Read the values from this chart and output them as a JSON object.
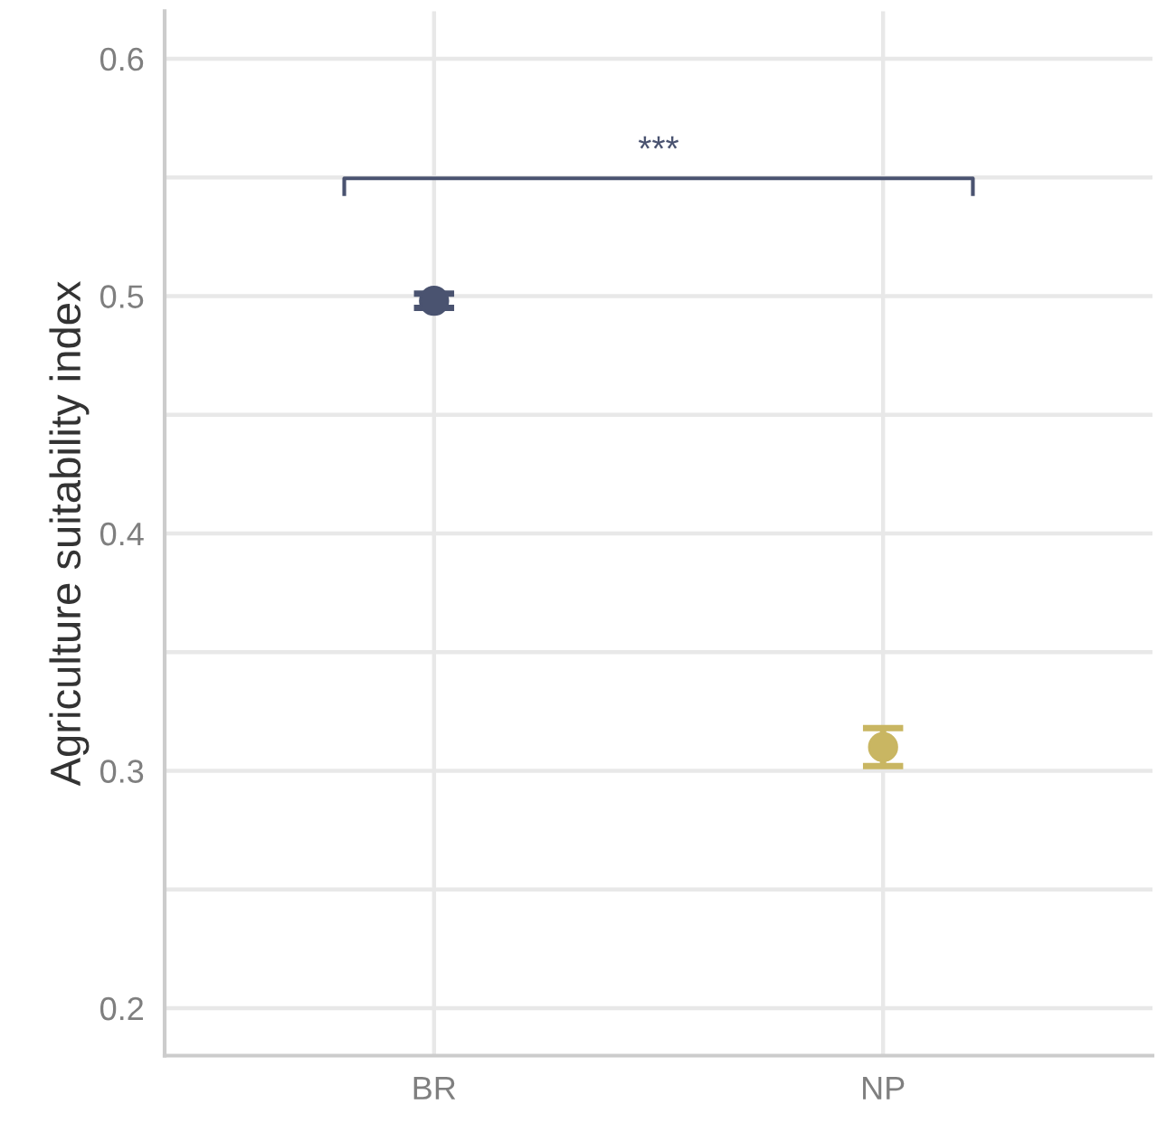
{
  "chart_data": {
    "type": "scatter",
    "ylabel": "Agriculture suitability index",
    "categories": [
      "BR",
      "NP"
    ],
    "values": [
      0.498,
      0.31
    ],
    "errors": [
      0.003,
      0.008
    ],
    "colors": [
      "#4a5370",
      "#c9b662"
    ],
    "marker": "circle",
    "ylim": [
      0.18,
      0.62
    ],
    "yticks": [
      {
        "value": 0.2,
        "label": "0.2"
      },
      {
        "value": 0.25,
        "label": null
      },
      {
        "value": 0.3,
        "label": "0.3"
      },
      {
        "value": 0.35,
        "label": null
      },
      {
        "value": 0.4,
        "label": "0.4"
      },
      {
        "value": 0.45,
        "label": null
      },
      {
        "value": 0.5,
        "label": "0.5"
      },
      {
        "value": 0.55,
        "label": null
      },
      {
        "value": 0.6,
        "label": "0.6"
      }
    ],
    "grid": true,
    "annotations": [
      "***"
    ]
  }
}
